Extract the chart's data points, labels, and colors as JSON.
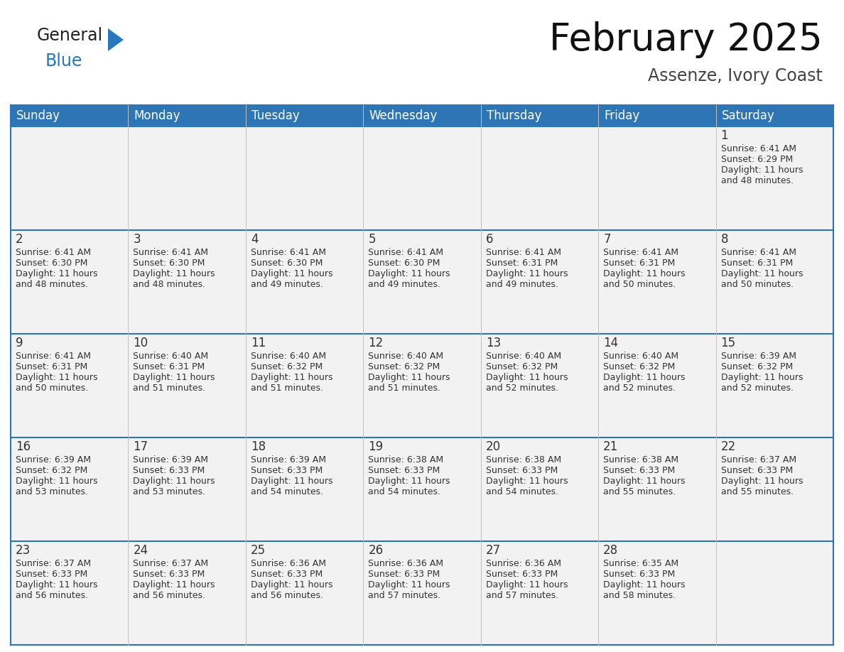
{
  "title": "February 2025",
  "subtitle": "Assenze, Ivory Coast",
  "header_color": "#2e75b6",
  "header_text_color": "#ffffff",
  "cell_bg_color": "#f2f2f2",
  "border_color": "#2e75b6",
  "border_thin_color": "#c0c0c0",
  "text_color": "#333333",
  "day_names": [
    "Sunday",
    "Monday",
    "Tuesday",
    "Wednesday",
    "Thursday",
    "Friday",
    "Saturday"
  ],
  "days_data": [
    {
      "day": 1,
      "col": 6,
      "row": 0,
      "sunrise": "6:41 AM",
      "sunset": "6:29 PM",
      "daylight": "11 hours and 48 minutes."
    },
    {
      "day": 2,
      "col": 0,
      "row": 1,
      "sunrise": "6:41 AM",
      "sunset": "6:30 PM",
      "daylight": "11 hours and 48 minutes."
    },
    {
      "day": 3,
      "col": 1,
      "row": 1,
      "sunrise": "6:41 AM",
      "sunset": "6:30 PM",
      "daylight": "11 hours and 48 minutes."
    },
    {
      "day": 4,
      "col": 2,
      "row": 1,
      "sunrise": "6:41 AM",
      "sunset": "6:30 PM",
      "daylight": "11 hours and 49 minutes."
    },
    {
      "day": 5,
      "col": 3,
      "row": 1,
      "sunrise": "6:41 AM",
      "sunset": "6:30 PM",
      "daylight": "11 hours and 49 minutes."
    },
    {
      "day": 6,
      "col": 4,
      "row": 1,
      "sunrise": "6:41 AM",
      "sunset": "6:31 PM",
      "daylight": "11 hours and 49 minutes."
    },
    {
      "day": 7,
      "col": 5,
      "row": 1,
      "sunrise": "6:41 AM",
      "sunset": "6:31 PM",
      "daylight": "11 hours and 50 minutes."
    },
    {
      "day": 8,
      "col": 6,
      "row": 1,
      "sunrise": "6:41 AM",
      "sunset": "6:31 PM",
      "daylight": "11 hours and 50 minutes."
    },
    {
      "day": 9,
      "col": 0,
      "row": 2,
      "sunrise": "6:41 AM",
      "sunset": "6:31 PM",
      "daylight": "11 hours and 50 minutes."
    },
    {
      "day": 10,
      "col": 1,
      "row": 2,
      "sunrise": "6:40 AM",
      "sunset": "6:31 PM",
      "daylight": "11 hours and 51 minutes."
    },
    {
      "day": 11,
      "col": 2,
      "row": 2,
      "sunrise": "6:40 AM",
      "sunset": "6:32 PM",
      "daylight": "11 hours and 51 minutes."
    },
    {
      "day": 12,
      "col": 3,
      "row": 2,
      "sunrise": "6:40 AM",
      "sunset": "6:32 PM",
      "daylight": "11 hours and 51 minutes."
    },
    {
      "day": 13,
      "col": 4,
      "row": 2,
      "sunrise": "6:40 AM",
      "sunset": "6:32 PM",
      "daylight": "11 hours and 52 minutes."
    },
    {
      "day": 14,
      "col": 5,
      "row": 2,
      "sunrise": "6:40 AM",
      "sunset": "6:32 PM",
      "daylight": "11 hours and 52 minutes."
    },
    {
      "day": 15,
      "col": 6,
      "row": 2,
      "sunrise": "6:39 AM",
      "sunset": "6:32 PM",
      "daylight": "11 hours and 52 minutes."
    },
    {
      "day": 16,
      "col": 0,
      "row": 3,
      "sunrise": "6:39 AM",
      "sunset": "6:32 PM",
      "daylight": "11 hours and 53 minutes."
    },
    {
      "day": 17,
      "col": 1,
      "row": 3,
      "sunrise": "6:39 AM",
      "sunset": "6:33 PM",
      "daylight": "11 hours and 53 minutes."
    },
    {
      "day": 18,
      "col": 2,
      "row": 3,
      "sunrise": "6:39 AM",
      "sunset": "6:33 PM",
      "daylight": "11 hours and 54 minutes."
    },
    {
      "day": 19,
      "col": 3,
      "row": 3,
      "sunrise": "6:38 AM",
      "sunset": "6:33 PM",
      "daylight": "11 hours and 54 minutes."
    },
    {
      "day": 20,
      "col": 4,
      "row": 3,
      "sunrise": "6:38 AM",
      "sunset": "6:33 PM",
      "daylight": "11 hours and 54 minutes."
    },
    {
      "day": 21,
      "col": 5,
      "row": 3,
      "sunrise": "6:38 AM",
      "sunset": "6:33 PM",
      "daylight": "11 hours and 55 minutes."
    },
    {
      "day": 22,
      "col": 6,
      "row": 3,
      "sunrise": "6:37 AM",
      "sunset": "6:33 PM",
      "daylight": "11 hours and 55 minutes."
    },
    {
      "day": 23,
      "col": 0,
      "row": 4,
      "sunrise": "6:37 AM",
      "sunset": "6:33 PM",
      "daylight": "11 hours and 56 minutes."
    },
    {
      "day": 24,
      "col": 1,
      "row": 4,
      "sunrise": "6:37 AM",
      "sunset": "6:33 PM",
      "daylight": "11 hours and 56 minutes."
    },
    {
      "day": 25,
      "col": 2,
      "row": 4,
      "sunrise": "6:36 AM",
      "sunset": "6:33 PM",
      "daylight": "11 hours and 56 minutes."
    },
    {
      "day": 26,
      "col": 3,
      "row": 4,
      "sunrise": "6:36 AM",
      "sunset": "6:33 PM",
      "daylight": "11 hours and 57 minutes."
    },
    {
      "day": 27,
      "col": 4,
      "row": 4,
      "sunrise": "6:36 AM",
      "sunset": "6:33 PM",
      "daylight": "11 hours and 57 minutes."
    },
    {
      "day": 28,
      "col": 5,
      "row": 4,
      "sunrise": "6:35 AM",
      "sunset": "6:33 PM",
      "daylight": "11 hours and 58 minutes."
    }
  ],
  "num_rows": 5,
  "logo_text1": "General",
  "logo_text2": "Blue",
  "logo_color1": "#222222",
  "logo_color2": "#2878be",
  "logo_triangle_color": "#2878be",
  "title_fontsize": 38,
  "subtitle_fontsize": 17,
  "day_name_fontsize": 12,
  "day_num_fontsize": 12,
  "cell_text_fontsize": 9
}
